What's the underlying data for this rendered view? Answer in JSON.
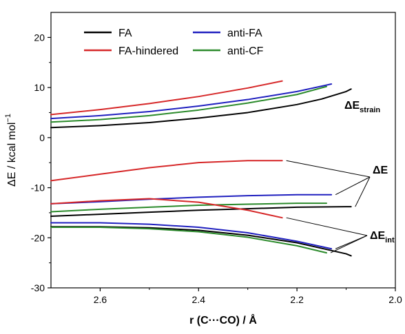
{
  "chart_data": {
    "type": "line",
    "title": "",
    "xlabel": "r (C···CO) / Å",
    "ylabel": "ΔE / kcal mol",
    "ylabel_superscript": "−1",
    "xlim": [
      2.7,
      2.0
    ],
    "ylim": [
      -30,
      25
    ],
    "x_reversed": true,
    "x_ticks": [
      2.6,
      2.4,
      2.2,
      2.0
    ],
    "x_tick_labels": [
      "2.6",
      "2.4",
      "2.2",
      "2.0"
    ],
    "y_ticks": [
      -30,
      -20,
      -10,
      0,
      10,
      20
    ],
    "y_tick_labels": [
      "-30",
      "-20",
      "-10",
      "0",
      "10",
      "20"
    ],
    "grid": false,
    "legend_position": "top-left",
    "legend": [
      {
        "name": "FA",
        "color": "#000000"
      },
      {
        "name": "FA-hindered",
        "color": "#d62728"
      },
      {
        "name": "anti-FA",
        "color": "#1f1fbf"
      },
      {
        "name": "anti-CF",
        "color": "#2a8a2a"
      }
    ],
    "series": [
      {
        "name": "FA",
        "component": "strain",
        "color": "#000000",
        "x": [
          2.7,
          2.6,
          2.5,
          2.4,
          2.3,
          2.2,
          2.15,
          2.1,
          2.09
        ],
        "y": [
          2.0,
          2.4,
          3.0,
          3.9,
          5.0,
          6.6,
          7.7,
          9.2,
          9.7
        ]
      },
      {
        "name": "FA-hindered",
        "component": "strain",
        "color": "#d62728",
        "x": [
          2.7,
          2.6,
          2.5,
          2.4,
          2.3,
          2.23
        ],
        "y": [
          4.6,
          5.6,
          6.8,
          8.2,
          9.9,
          11.3
        ]
      },
      {
        "name": "anti-FA",
        "component": "strain",
        "color": "#1f1fbf",
        "x": [
          2.7,
          2.6,
          2.5,
          2.4,
          2.3,
          2.2,
          2.13
        ],
        "y": [
          3.8,
          4.4,
          5.2,
          6.3,
          7.6,
          9.2,
          10.7
        ]
      },
      {
        "name": "anti-CF",
        "component": "strain",
        "color": "#2a8a2a",
        "x": [
          2.7,
          2.6,
          2.5,
          2.4,
          2.3,
          2.2,
          2.14
        ],
        "y": [
          3.1,
          3.6,
          4.4,
          5.5,
          6.9,
          8.6,
          10.2
        ]
      },
      {
        "name": "FA",
        "component": "total",
        "color": "#000000",
        "x": [
          2.7,
          2.6,
          2.5,
          2.4,
          2.3,
          2.2,
          2.1,
          2.09
        ],
        "y": [
          -15.7,
          -15.3,
          -14.9,
          -14.5,
          -14.2,
          -13.9,
          -13.8,
          -13.8
        ]
      },
      {
        "name": "FA-hindered",
        "component": "total",
        "color": "#d62728",
        "x": [
          2.7,
          2.6,
          2.5,
          2.4,
          2.3,
          2.23
        ],
        "y": [
          -8.6,
          -7.3,
          -6.0,
          -5.0,
          -4.6,
          -4.6
        ]
      },
      {
        "name": "anti-FA",
        "component": "total",
        "color": "#1f1fbf",
        "x": [
          2.7,
          2.6,
          2.5,
          2.4,
          2.3,
          2.2,
          2.13
        ],
        "y": [
          -13.2,
          -12.8,
          -12.3,
          -11.9,
          -11.6,
          -11.4,
          -11.4
        ]
      },
      {
        "name": "anti-CF",
        "component": "total",
        "color": "#2a8a2a",
        "x": [
          2.7,
          2.6,
          2.5,
          2.4,
          2.3,
          2.2,
          2.14
        ],
        "y": [
          -14.8,
          -14.3,
          -13.9,
          -13.5,
          -13.3,
          -13.1,
          -13.1
        ]
      },
      {
        "name": "FA",
        "component": "interaction",
        "color": "#000000",
        "x": [
          2.7,
          2.6,
          2.5,
          2.4,
          2.3,
          2.2,
          2.1,
          2.09
        ],
        "y": [
          -17.8,
          -17.8,
          -18.0,
          -18.5,
          -19.5,
          -21.0,
          -23.2,
          -23.6
        ]
      },
      {
        "name": "FA-hindered",
        "component": "interaction",
        "color": "#d62728",
        "x": [
          2.7,
          2.6,
          2.5,
          2.4,
          2.3,
          2.23
        ],
        "y": [
          -13.2,
          -12.6,
          -12.2,
          -12.9,
          -14.5,
          -16.0
        ]
      },
      {
        "name": "anti-FA",
        "component": "interaction",
        "color": "#1f1fbf",
        "x": [
          2.7,
          2.6,
          2.5,
          2.4,
          2.3,
          2.2,
          2.13
        ],
        "y": [
          -17.0,
          -17.0,
          -17.3,
          -17.9,
          -19.0,
          -20.7,
          -22.2
        ]
      },
      {
        "name": "anti-CF",
        "component": "interaction",
        "color": "#2a8a2a",
        "x": [
          2.7,
          2.6,
          2.5,
          2.4,
          2.3,
          2.2,
          2.14
        ],
        "y": [
          -17.9,
          -17.9,
          -18.2,
          -18.8,
          -19.9,
          -21.6,
          -23.0
        ]
      }
    ],
    "annotations": [
      {
        "base": "ΔE",
        "sub": "strain"
      },
      {
        "base": "ΔE",
        "sub": ""
      },
      {
        "base": "ΔE",
        "sub": "int"
      }
    ]
  }
}
